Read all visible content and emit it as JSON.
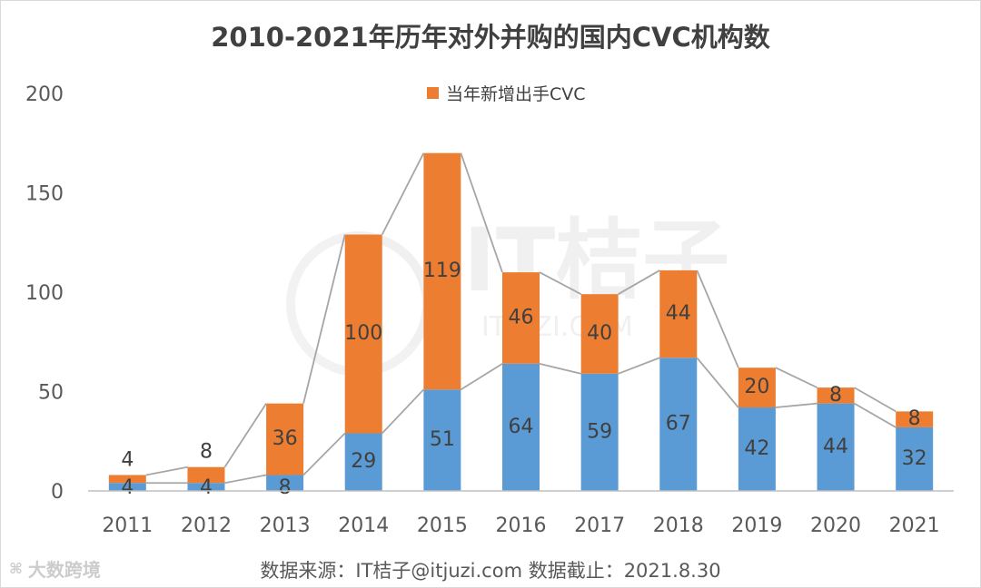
{
  "chart_data": {
    "type": "bar",
    "title": "2010-2021年历年对外并购的国内CVC机构数",
    "categories": [
      "2011",
      "2012",
      "2013",
      "2014",
      "2015",
      "2016",
      "2017",
      "2018",
      "2019",
      "2020",
      "2021"
    ],
    "series": [
      {
        "name": "",
        "values": [
          4,
          4,
          8,
          29,
          51,
          64,
          59,
          67,
          42,
          44,
          32
        ],
        "color": "#5b9bd5"
      },
      {
        "name": "当年新增出手CVC",
        "values": [
          4,
          8,
          36,
          100,
          119,
          46,
          40,
          44,
          20,
          8,
          8
        ],
        "color": "#ed7d31"
      }
    ],
    "stacked": true,
    "ylim": [
      0,
      200
    ],
    "yticks": [
      0,
      50,
      100,
      150,
      200
    ],
    "xlabel": "",
    "ylabel": "",
    "grid": false,
    "legend_position": "top",
    "line_overlays": "connects series tops and stack tops"
  },
  "source_note": "数据来源：IT桔子@itjuzi.com  数据截止：2021.8.30",
  "watermark": {
    "center_text": "IT桔子",
    "center_subtext": "ITJUZI.COM",
    "bottom_text": "大数跨境"
  }
}
